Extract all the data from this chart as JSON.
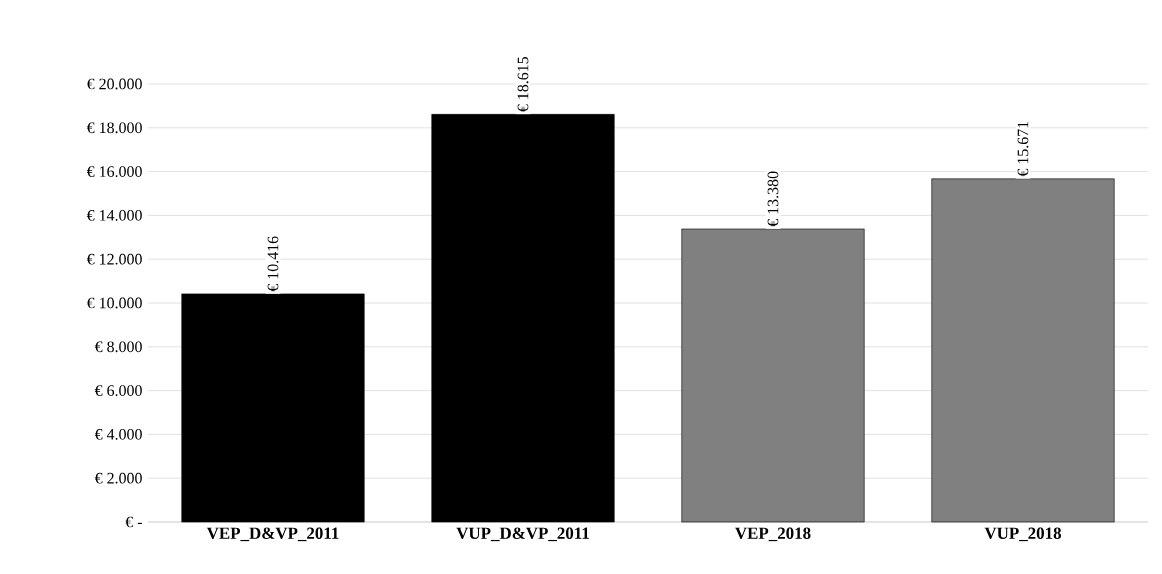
{
  "chart_data": {
    "type": "bar",
    "categories": [
      "VEP_D&VP_2011",
      "VUP_D&VP_2011",
      "VEP_2018",
      "VUP_2018"
    ],
    "values": [
      10416,
      18615,
      13380,
      15671
    ],
    "colors": [
      "#000000",
      "#000000",
      "#808080",
      "#808080"
    ],
    "value_labels": [
      "€ 10.416",
      "€ 18.615",
      "€ 13.380",
      "€ 15.671"
    ],
    "ylim": [
      0,
      20000
    ],
    "yticks": [
      {
        "value": 0,
        "label": "€ -"
      },
      {
        "value": 2000,
        "label": "€ 2.000"
      },
      {
        "value": 4000,
        "label": "€ 4.000"
      },
      {
        "value": 6000,
        "label": "€ 6.000"
      },
      {
        "value": 8000,
        "label": "€ 8.000"
      },
      {
        "value": 10000,
        "label": "€ 10.000"
      },
      {
        "value": 12000,
        "label": "€ 12.000"
      },
      {
        "value": 14000,
        "label": "€ 14.000"
      },
      {
        "value": 16000,
        "label": "€ 16.000"
      },
      {
        "value": 18000,
        "label": "€ 18.000"
      },
      {
        "value": 20000,
        "label": "€ 20.000"
      }
    ],
    "grid": "y"
  }
}
